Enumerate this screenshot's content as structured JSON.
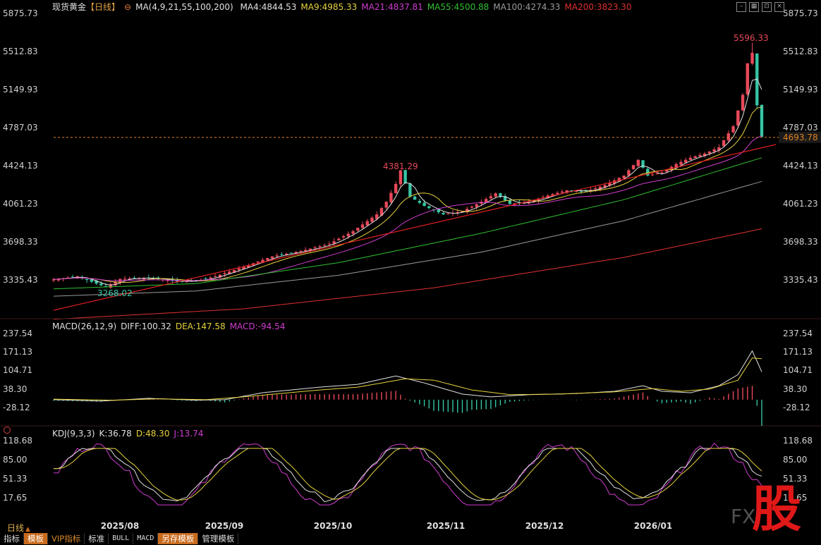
{
  "header": {
    "symbol": "现货黄金",
    "period": "【日线】",
    "ma_params": "MA(4,9,21,55,100,200)",
    "ma": [
      {
        "label": "MA4:4844.53",
        "color": "#e0e0e0"
      },
      {
        "label": "MA9:4985.33",
        "color": "#e6d23c"
      },
      {
        "label": "MA21:4837.81",
        "color": "#d03cd0"
      },
      {
        "label": "MA55:4500.88",
        "color": "#30c030"
      },
      {
        "label": "MA100:4274.33",
        "color": "#9a9a9a"
      },
      {
        "label": "MA200:3823.30",
        "color": "#e03030"
      }
    ]
  },
  "macd_header": {
    "title": "MACD(26,12,9)",
    "diff": "DIFF:100.32",
    "dea": "DEA:147.58",
    "macd": "MACD:-94.54"
  },
  "kdj_header": {
    "title": "KDJ(9,3,3)",
    "k": "K:36.78",
    "d": "D:48.30",
    "j": "J:13.74"
  },
  "price_axis": [
    "5875.73",
    "5512.83",
    "5149.93",
    "4787.03",
    "4424.13",
    "4061.23",
    "3698.33",
    "3335.43"
  ],
  "macd_axis": [
    "237.54",
    "171.13",
    "104.71",
    "38.30",
    "-28.12"
  ],
  "kdj_axis": [
    "118.68",
    "85.00",
    "51.33",
    "17.65"
  ],
  "annotations": {
    "high": "5596.33",
    "mid_high": "4381.29",
    "low": "3268.02",
    "current": "4693.78"
  },
  "date_axis": [
    "2025/08",
    "2025/09",
    "2025/10",
    "2025/11",
    "2025/12",
    "2026/01"
  ],
  "freq_label": "日线",
  "toolbar": [
    "指标",
    "模板",
    "VIP指标",
    "标准",
    "BULL",
    "MACD",
    "另存模板",
    "管理模板"
  ],
  "colors": {
    "up": "#e8495a",
    "down": "#36c4a4",
    "bg": "#000000"
  },
  "chart_data": {
    "type": "candlestick",
    "title": "现货黄金 【日线】",
    "series": [
      {
        "name": "MA4",
        "value": 4844.53
      },
      {
        "name": "MA9",
        "value": 4985.33
      },
      {
        "name": "MA21",
        "value": 4837.81
      },
      {
        "name": "MA55",
        "value": 4500.88
      },
      {
        "name": "MA100",
        "value": 4274.33
      },
      {
        "name": "MA200",
        "value": 3823.3
      }
    ],
    "x_range": [
      "2025-07",
      "2026-02"
    ],
    "y_range": [
      3200,
      5875.73
    ],
    "key_points": [
      {
        "label": "3268.02",
        "value": 3268.02
      },
      {
        "label": "4381.29",
        "value": 4381.29
      },
      {
        "label": "5596.33",
        "value": 5596.33
      },
      {
        "label": "4693.78",
        "value": 4693.78
      }
    ]
  }
}
